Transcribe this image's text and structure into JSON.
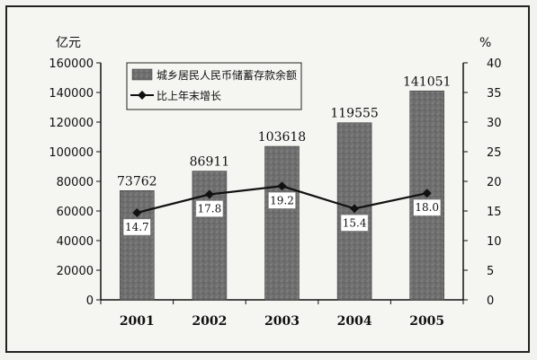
{
  "chart_data": {
    "type": "bar",
    "categories": [
      "2001",
      "2002",
      "2003",
      "2004",
      "2005"
    ],
    "series": [
      {
        "name": "城乡居民人民币储蓄存款余额",
        "axis": "left",
        "type": "bar",
        "values": [
          73762,
          86911,
          103618,
          119555,
          141051
        ]
      },
      {
        "name": "比上年末增长",
        "axis": "right",
        "type": "line",
        "values": [
          14.7,
          17.8,
          19.2,
          15.4,
          18.0
        ]
      }
    ],
    "data_labels_bar": [
      "73762",
      "86911",
      "103618",
      "119555",
      "141051"
    ],
    "data_labels_line": [
      "14.7",
      "17.8",
      "19.2",
      "15.4",
      "18.0"
    ],
    "y_left": {
      "unit": "亿元",
      "range": [
        0,
        160000
      ],
      "ticks": [
        "0",
        "20000",
        "40000",
        "60000",
        "80000",
        "100000",
        "120000",
        "140000",
        "160000"
      ]
    },
    "y_right": {
      "unit": "%",
      "range": [
        0,
        40
      ],
      "ticks": [
        "0",
        "5",
        "10",
        "15",
        "20",
        "25",
        "30",
        "35",
        "40"
      ]
    },
    "legend_position": "top-left",
    "grid": false,
    "colors": {
      "bar": "#6e6e6e",
      "line": "#111111",
      "background": "#f5f5f1"
    }
  }
}
